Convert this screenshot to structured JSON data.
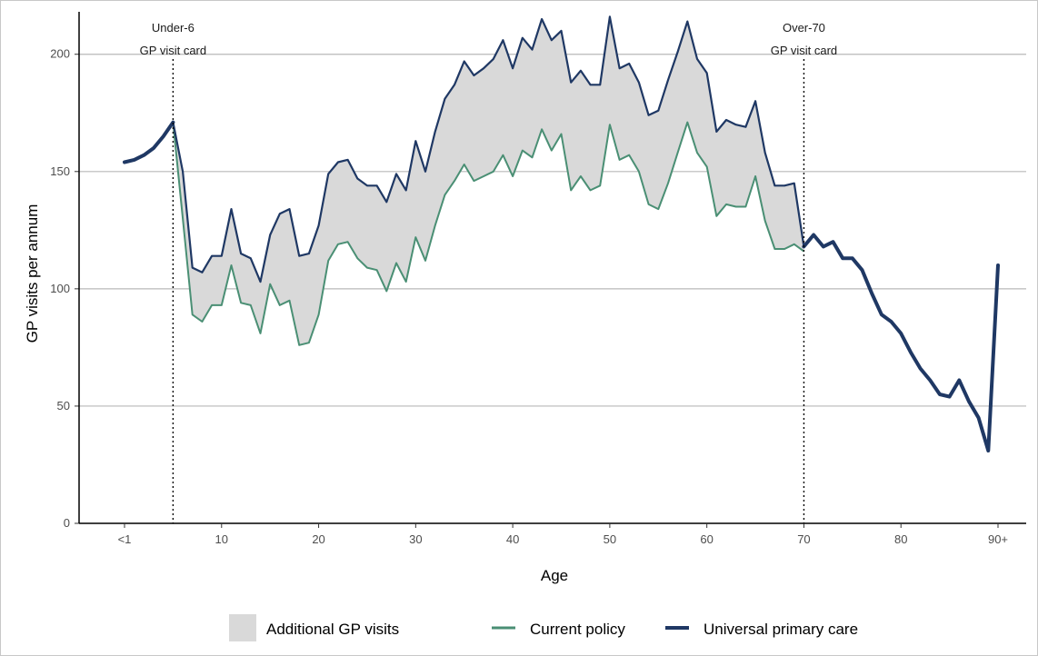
{
  "chart_data": {
    "type": "line",
    "xlabel": "Age",
    "ylabel": "GP visits per annum",
    "ylim": [
      0,
      215
    ],
    "xlim": [
      0,
      90
    ],
    "grid": "horizontal major",
    "legend_position": "bottom",
    "y_ticks": [
      0,
      50,
      100,
      150,
      200
    ],
    "x_ticks": [
      {
        "value": 0,
        "label": "<1"
      },
      {
        "value": 10,
        "label": "10"
      },
      {
        "value": 20,
        "label": "20"
      },
      {
        "value": 30,
        "label": "30"
      },
      {
        "value": 40,
        "label": "40"
      },
      {
        "value": 50,
        "label": "50"
      },
      {
        "value": 60,
        "label": "60"
      },
      {
        "value": 70,
        "label": "70"
      },
      {
        "value": 80,
        "label": "80"
      },
      {
        "value": 90,
        "label": "90+"
      }
    ],
    "annotations": [
      {
        "x": 5,
        "line1": "Under-6",
        "line2": "GP visit card"
      },
      {
        "x": 70,
        "line1": "Over-70",
        "line2": "GP visit card"
      }
    ],
    "legend": {
      "additional": "Additional GP visits",
      "current": "Current policy",
      "universal": "Universal primary care"
    },
    "colors": {
      "universal": "#1f3864",
      "current": "#4a8f74",
      "fill": "#d9d9d9",
      "grid": "#b8b8b8"
    },
    "series": [
      {
        "name": "Universal primary care",
        "x": [
          0,
          1,
          2,
          3,
          4,
          5,
          6,
          7,
          8,
          9,
          10,
          11,
          12,
          13,
          14,
          15,
          16,
          17,
          18,
          19,
          20,
          21,
          22,
          23,
          24,
          25,
          26,
          27,
          28,
          29,
          30,
          31,
          32,
          33,
          34,
          35,
          36,
          37,
          38,
          39,
          40,
          41,
          42,
          43,
          44,
          45,
          46,
          47,
          48,
          49,
          50,
          51,
          52,
          53,
          54,
          55,
          56,
          57,
          58,
          59,
          60,
          61,
          62,
          63,
          64,
          65,
          66,
          67,
          68,
          69,
          70,
          71,
          72,
          73,
          74,
          75,
          76,
          77,
          78,
          79,
          80,
          81,
          82,
          83,
          84,
          85,
          86,
          87,
          88,
          89,
          90
        ],
        "values": [
          154,
          155,
          157,
          160,
          165,
          171,
          150,
          109,
          107,
          114,
          114,
          134,
          115,
          113,
          103,
          123,
          132,
          134,
          114,
          115,
          127,
          149,
          154,
          155,
          147,
          144,
          144,
          137,
          149,
          142,
          163,
          150,
          167,
          181,
          187,
          197,
          191,
          194,
          198,
          206,
          194,
          207,
          202,
          215,
          206,
          210,
          188,
          193,
          187,
          187,
          216,
          194,
          196,
          188,
          174,
          176,
          189,
          201,
          214,
          198,
          192,
          167,
          172,
          170,
          169,
          180,
          158,
          144,
          144,
          145,
          118,
          123,
          118,
          120,
          113,
          113,
          108,
          98,
          89,
          86,
          81,
          73,
          66,
          61,
          55,
          54,
          61,
          52,
          45,
          31,
          110
        ]
      },
      {
        "name": "Current policy",
        "x": [
          5,
          6,
          7,
          8,
          9,
          10,
          11,
          12,
          13,
          14,
          15,
          16,
          17,
          18,
          19,
          20,
          21,
          22,
          23,
          24,
          25,
          26,
          27,
          28,
          29,
          30,
          31,
          32,
          33,
          34,
          35,
          36,
          37,
          38,
          39,
          40,
          41,
          42,
          43,
          44,
          45,
          46,
          47,
          48,
          49,
          50,
          51,
          52,
          53,
          54,
          55,
          56,
          57,
          58,
          59,
          60,
          61,
          62,
          63,
          64,
          65,
          66,
          67,
          68,
          69,
          70
        ],
        "values": [
          171,
          130,
          89,
          86,
          93,
          93,
          110,
          94,
          93,
          81,
          102,
          93,
          95,
          76,
          77,
          89,
          112,
          119,
          120,
          113,
          109,
          108,
          99,
          111,
          103,
          122,
          112,
          127,
          140,
          146,
          153,
          146,
          148,
          150,
          157,
          148,
          159,
          156,
          168,
          159,
          166,
          142,
          148,
          142,
          144,
          170,
          155,
          157,
          150,
          136,
          134,
          145,
          158,
          171,
          158,
          152,
          131,
          136,
          135,
          135,
          148,
          129,
          117,
          117,
          119,
          116
        ]
      }
    ]
  }
}
